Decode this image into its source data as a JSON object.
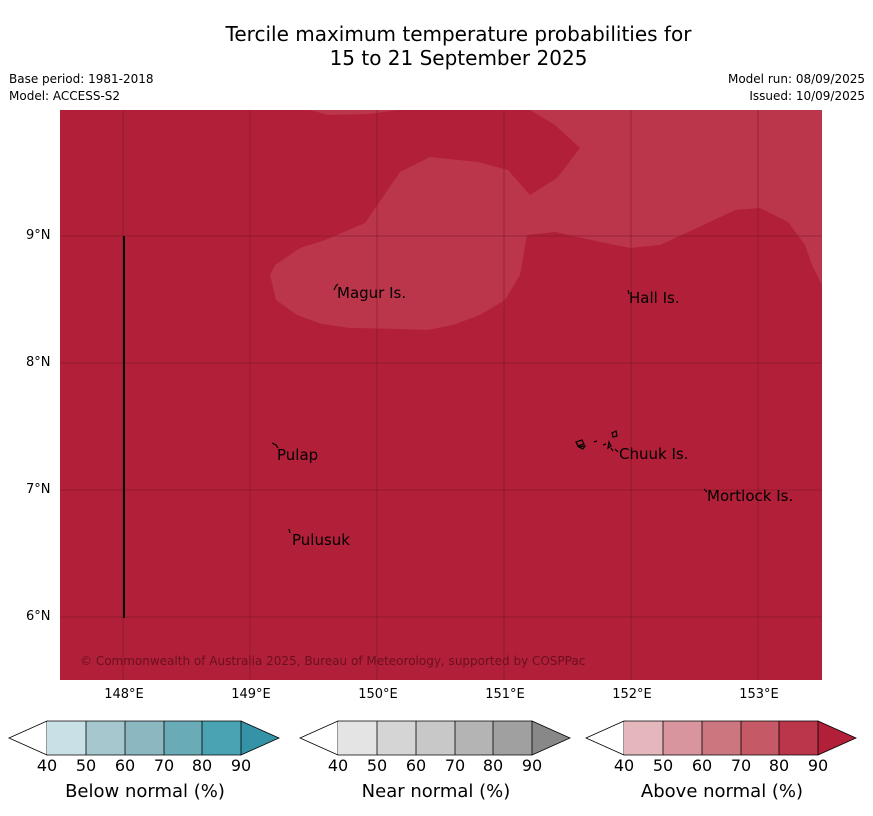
{
  "title_line1": "Tercile maximum temperature probabilities for",
  "title_line2": "15 to 21 September 2025",
  "base_period": "Base period: 1981-2018",
  "model": "Model: ACCESS-S2",
  "model_run": "Model run: 08/09/2025",
  "issued": "Issued: 10/09/2025",
  "map": {
    "lat_labels": [
      "9°N",
      "8°N",
      "7°N",
      "6°N"
    ],
    "lon_labels": [
      "148°E",
      "149°E",
      "150°E",
      "151°E",
      "152°E",
      "153°E"
    ],
    "places": [
      "Magur Is.",
      "Hall Is.",
      "Pulap",
      "Chuuk Is.",
      "Mortlock Is.",
      "Pulusuk"
    ],
    "copyright": "© Commonwealth of Australia 2025, Bureau of Meteorology, supported by COSPPac",
    "colors": {
      "above_80_90": "#b11f38",
      "above_70_80": "#bb354b"
    }
  },
  "legends": [
    {
      "title": "Below normal (%)",
      "ticks": [
        "40",
        "50",
        "60",
        "70",
        "80",
        "90"
      ],
      "colors": [
        "#ffffff",
        "#c9e0e6",
        "#a5c7cd",
        "#8bb7c1",
        "#6aabb8",
        "#49a3b2",
        "#3493a6"
      ]
    },
    {
      "title": "Near normal (%)",
      "ticks": [
        "40",
        "50",
        "60",
        "70",
        "80",
        "90"
      ],
      "colors": [
        "#ffffff",
        "#e4e4e4",
        "#d5d5d5",
        "#c8c8c8",
        "#b4b4b4",
        "#a0a0a0",
        "#888888"
      ]
    },
    {
      "title": "Above normal (%)",
      "ticks": [
        "40",
        "50",
        "60",
        "70",
        "80",
        "90"
      ],
      "colors": [
        "#ffffff",
        "#e4b7bd",
        "#d8959d",
        "#cc7680",
        "#c55965",
        "#bb354b",
        "#b11f38"
      ]
    }
  ]
}
